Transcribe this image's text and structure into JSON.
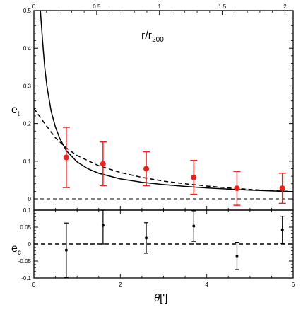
{
  "chart_data": [
    {
      "type": "scatter",
      "panel": "top",
      "ylabel_main": "e",
      "ylabel_sub": "t",
      "top_axis_label_main": "r/r",
      "top_axis_label_sub": "200",
      "xlim": [
        0,
        6
      ],
      "ylim": [
        -0.03,
        0.5
      ],
      "top_xlim": [
        0,
        2.065
      ],
      "x_ticks": [
        "0",
        "2",
        "4",
        "6"
      ],
      "y_ticks": [
        "0",
        "0.1",
        "0.2",
        "0.3",
        "0.4",
        "0.5"
      ],
      "y_tick_values": [
        0,
        0.1,
        0.2,
        0.3,
        0.4,
        0.5
      ],
      "top_ticks": [
        "0",
        "0.5",
        "1",
        "1.5",
        "2"
      ],
      "top_tick_values": [
        0,
        0.5,
        1,
        1.5,
        2
      ],
      "points": [
        {
          "x": 0.75,
          "y": 0.11,
          "err_low": 0.08,
          "err_high": 0.08
        },
        {
          "x": 1.6,
          "y": 0.093,
          "err_low": 0.058,
          "err_high": 0.058
        },
        {
          "x": 2.6,
          "y": 0.08,
          "err_low": 0.045,
          "err_high": 0.045
        },
        {
          "x": 3.7,
          "y": 0.057,
          "err_low": 0.045,
          "err_high": 0.045
        },
        {
          "x": 4.7,
          "y": 0.028,
          "err_low": 0.045,
          "err_high": 0.045
        },
        {
          "x": 5.75,
          "y": 0.028,
          "err_low": 0.04,
          "err_high": 0.04
        }
      ],
      "curve_solid": {
        "x": [
          0.15,
          0.2,
          0.25,
          0.3,
          0.4,
          0.5,
          0.6,
          0.75,
          1.0,
          1.25,
          1.5,
          2.0,
          2.5,
          3.0,
          3.5,
          4.0,
          4.5,
          5.0,
          5.5,
          6.0
        ],
        "y": [
          0.52,
          0.42,
          0.35,
          0.3,
          0.232,
          0.19,
          0.16,
          0.128,
          0.098,
          0.08,
          0.068,
          0.053,
          0.044,
          0.038,
          0.033,
          0.029,
          0.026,
          0.023,
          0.021,
          0.019
        ]
      },
      "curve_dashed": {
        "x": [
          0.0,
          0.25,
          0.5,
          0.75,
          1.0,
          1.5,
          2.0,
          2.5,
          3.0,
          3.5,
          4.0,
          4.5,
          5.0,
          5.5,
          6.0
        ],
        "y": [
          0.24,
          0.2,
          0.162,
          0.135,
          0.115,
          0.088,
          0.07,
          0.057,
          0.047,
          0.04,
          0.034,
          0.029,
          0.025,
          0.022,
          0.019
        ]
      },
      "zero_line_y": 0,
      "colors": {
        "points": "#e8231f",
        "curves": "#000000"
      }
    },
    {
      "type": "scatter",
      "panel": "bottom",
      "xlabel_main": "θ",
      "xlabel_unit": "[']",
      "ylabel_main": "e",
      "ylabel_sub": "c",
      "xlim": [
        0,
        6
      ],
      "ylim": [
        -0.1,
        0.1
      ],
      "x_ticks": [
        "0",
        "2",
        "4",
        "6"
      ],
      "x_tick_values": [
        0,
        2,
        4,
        6
      ],
      "y_ticks": [
        "-0.1",
        "-0.05",
        "0",
        "0.05",
        "0.1"
      ],
      "y_tick_values": [
        -0.1,
        -0.05,
        0,
        0.05,
        0.1
      ],
      "points": [
        {
          "x": 0.75,
          "y": -0.018,
          "err_low": 0.08,
          "err_high": 0.08
        },
        {
          "x": 1.6,
          "y": 0.055,
          "err_low": 0.055,
          "err_high": 0.045
        },
        {
          "x": 2.6,
          "y": 0.018,
          "err_low": 0.045,
          "err_high": 0.045
        },
        {
          "x": 3.7,
          "y": 0.053,
          "err_low": 0.045,
          "err_high": 0.045
        },
        {
          "x": 4.7,
          "y": -0.035,
          "err_low": 0.04,
          "err_high": 0.04
        },
        {
          "x": 5.75,
          "y": 0.042,
          "err_low": 0.04,
          "err_high": 0.04
        }
      ],
      "zero_line_y": 0,
      "colors": {
        "points": "#000000"
      }
    }
  ]
}
